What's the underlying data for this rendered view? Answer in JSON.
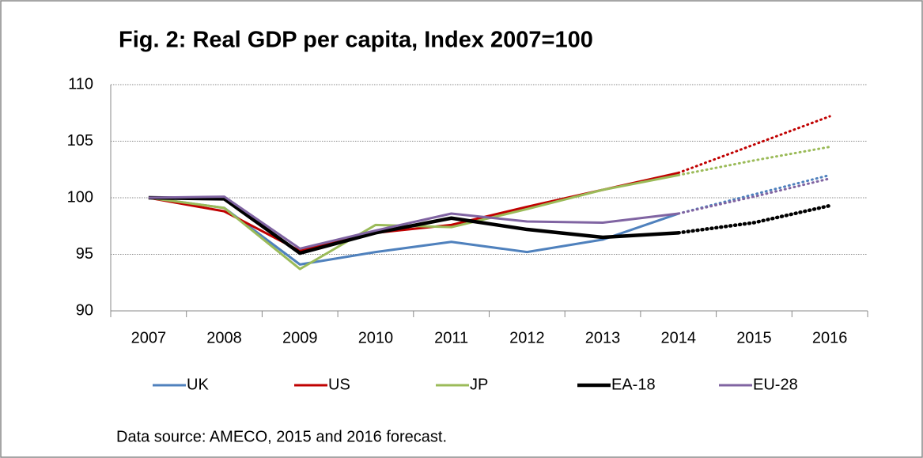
{
  "chart_data": {
    "type": "line",
    "title": "Fig. 2: Real GDP per capita, Index 2007=100",
    "note": "Data source: AMECO, 2015 and 2016 forecast.",
    "categories": [
      "2007",
      "2008",
      "2009",
      "2010",
      "2011",
      "2012",
      "2013",
      "2014",
      "2015",
      "2016"
    ],
    "forecast_start": 7,
    "series": [
      {
        "name": "UK",
        "color": "#4f81bd",
        "width": 3,
        "values": [
          100,
          99.1,
          94.1,
          95.2,
          96.1,
          95.2,
          96.3,
          98.6,
          100.3,
          102.0
        ]
      },
      {
        "name": "US",
        "color": "#c00000",
        "width": 3,
        "values": [
          100,
          98.8,
          95.3,
          96.9,
          97.6,
          99.2,
          100.7,
          102.2,
          104.7,
          107.2
        ]
      },
      {
        "name": "JP",
        "color": "#9bbb59",
        "width": 3,
        "values": [
          100,
          99.1,
          93.7,
          97.6,
          97.4,
          99.0,
          100.7,
          102.0,
          103.3,
          104.5
        ]
      },
      {
        "name": "EA-18",
        "color": "#000000",
        "width": 4.5,
        "values": [
          100,
          99.9,
          95.1,
          96.9,
          98.2,
          97.2,
          96.5,
          96.9,
          97.8,
          99.3
        ]
      },
      {
        "name": "EU-28",
        "color": "#8064a2",
        "width": 3,
        "values": [
          100,
          100.1,
          95.5,
          97.1,
          98.6,
          97.9,
          97.8,
          98.6,
          100.1,
          101.7
        ]
      }
    ],
    "ylim": [
      90,
      110
    ],
    "yticks": [
      90,
      95,
      100,
      105,
      110
    ],
    "grid": true,
    "legend": "bottom"
  }
}
